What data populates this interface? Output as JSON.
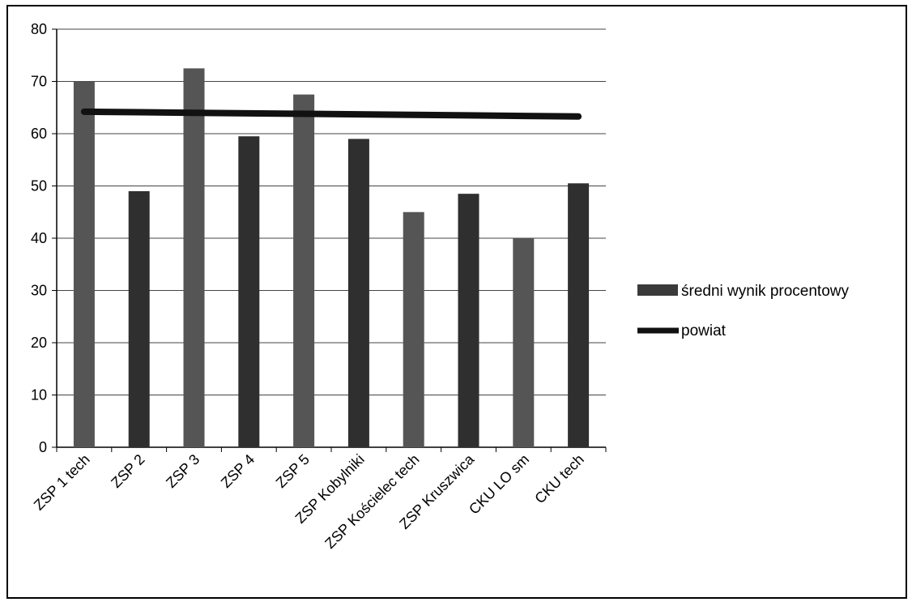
{
  "chart_data": {
    "type": "bar",
    "categories": [
      "ZSP 1 tech",
      "ZSP 2",
      "ZSP 3",
      "ZSP 4",
      "ZSP 5",
      "ZSP Kobylniki",
      "ZSP Kościelec tech",
      "ZSP Kruszwica",
      "CKU LO sm",
      "CKU tech"
    ],
    "series": [
      {
        "name": "średni wynik procentowy",
        "type": "bar",
        "values": [
          70,
          49,
          72.5,
          59.5,
          67.5,
          59,
          45,
          48.5,
          40,
          50.5
        ],
        "color": "#3a3a3a"
      },
      {
        "name": "powiat",
        "type": "line",
        "values": [
          64.2,
          64.1,
          64.0,
          63.9,
          63.8,
          63.7,
          63.6,
          63.5,
          63.4,
          63.3
        ],
        "color": "#111111"
      }
    ],
    "ylim": [
      0,
      80
    ],
    "yticks": [
      "0",
      "10",
      "20",
      "30",
      "40",
      "50",
      "60",
      "70",
      "80"
    ],
    "grid": true,
    "legend_position": "right",
    "title": "",
    "xlabel": "",
    "ylabel": ""
  }
}
